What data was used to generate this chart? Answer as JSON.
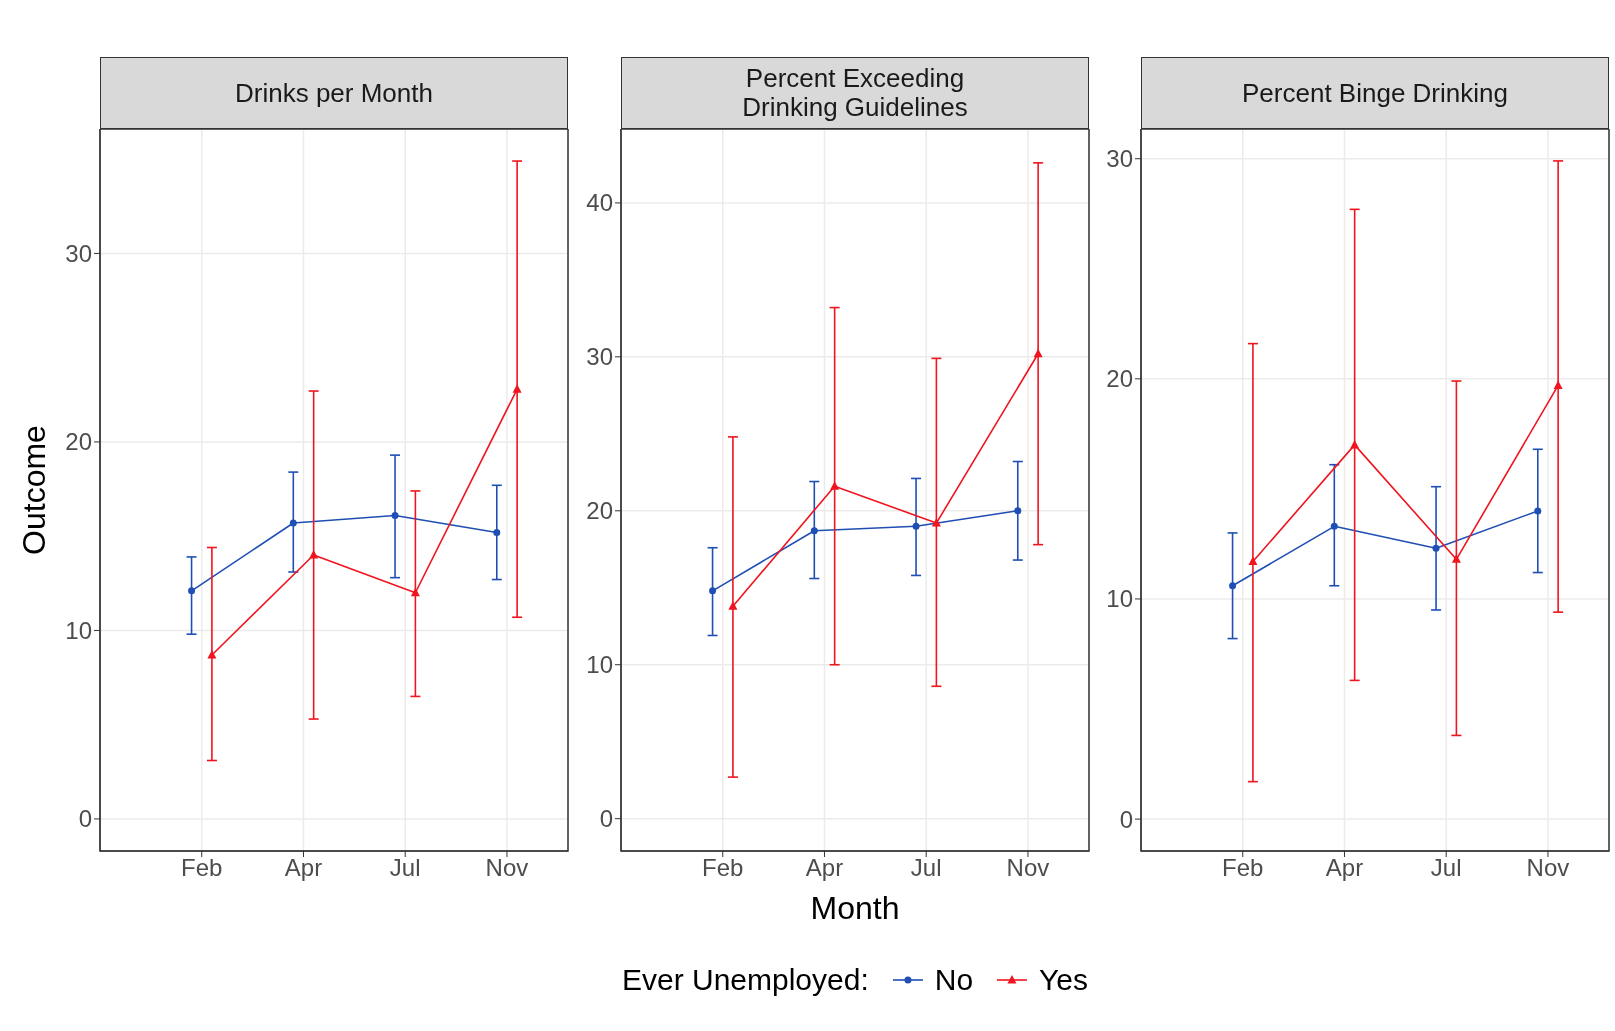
{
  "chart_data": [
    {
      "type": "line",
      "title": "Drinks per Month",
      "ylabel": "Outcome",
      "categories": [
        "Feb",
        "Apr",
        "Jul",
        "Nov"
      ],
      "ylim": [
        -1.7,
        36.6
      ],
      "yticks": [
        0,
        10,
        20,
        30
      ],
      "grid": true,
      "legend": "bottom",
      "legend_title": "Ever Unemployed:",
      "series": [
        {
          "name": "No",
          "color": "#1f4fb4",
          "marker": "circle",
          "values": [
            12.1,
            15.7,
            16.1,
            15.2
          ],
          "errors": [
            [
              9.8,
              13.9
            ],
            [
              13.1,
              18.4
            ],
            [
              12.8,
              19.3
            ],
            [
              12.7,
              17.7
            ]
          ]
        },
        {
          "name": "Yes",
          "color": "#f0141e",
          "marker": "triangle",
          "values": [
            8.7,
            14.0,
            12.0,
            22.8
          ],
          "errors": [
            [
              3.1,
              14.4
            ],
            [
              5.3,
              22.7
            ],
            [
              6.5,
              17.4
            ],
            [
              10.7,
              34.9
            ]
          ]
        }
      ]
    },
    {
      "type": "line",
      "title": "Percent Exceeding\nDrinking Guidelines",
      "xlabel": "Month",
      "categories": [
        "Feb",
        "Apr",
        "Jul",
        "Nov"
      ],
      "ylim": [
        -2.1,
        44.8
      ],
      "yticks": [
        0,
        10,
        20,
        30,
        40
      ],
      "grid": true,
      "series": [
        {
          "color": "#1f4fb4",
          "marker": "circle",
          "values": [
            14.8,
            18.7,
            19.0,
            20.0
          ],
          "errors": [
            [
              11.9,
              17.6
            ],
            [
              15.6,
              21.9
            ],
            [
              15.8,
              22.1
            ],
            [
              16.8,
              23.2
            ]
          ]
        },
        {
          "color": "#f0141e",
          "marker": "triangle",
          "values": [
            13.8,
            21.6,
            19.2,
            30.2
          ],
          "errors": [
            [
              2.7,
              24.8
            ],
            [
              10.0,
              33.2
            ],
            [
              8.6,
              29.9
            ],
            [
              17.8,
              42.6
            ]
          ]
        }
      ]
    },
    {
      "type": "line",
      "title": "Percent Binge Drinking",
      "categories": [
        "Feb",
        "Apr",
        "Jul",
        "Nov"
      ],
      "ylim": [
        -1.45,
        31.35
      ],
      "yticks": [
        0,
        10,
        20,
        30
      ],
      "grid": true,
      "series": [
        {
          "color": "#1f4fb4",
          "marker": "circle",
          "values": [
            10.6,
            13.3,
            12.3,
            14.0
          ],
          "errors": [
            [
              8.2,
              13.0
            ],
            [
              10.6,
              16.1
            ],
            [
              9.5,
              15.1
            ],
            [
              11.2,
              16.8
            ]
          ]
        },
        {
          "color": "#f0141e",
          "marker": "triangle",
          "values": [
            11.7,
            17.0,
            11.8,
            19.7
          ],
          "errors": [
            [
              1.7,
              21.6
            ],
            [
              6.3,
              27.7
            ],
            [
              3.8,
              19.9
            ],
            [
              9.4,
              29.9
            ]
          ]
        }
      ]
    }
  ]
}
